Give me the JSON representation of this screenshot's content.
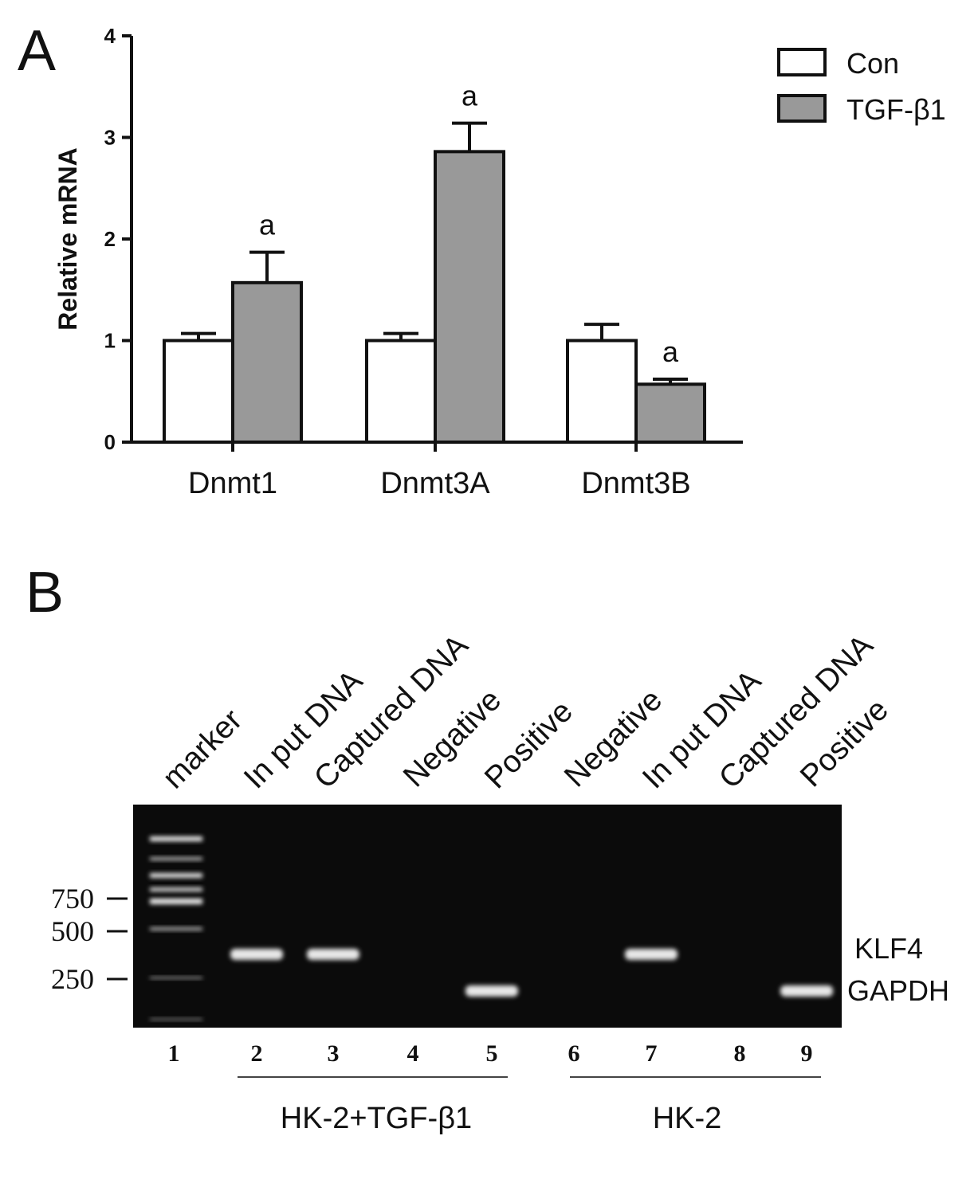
{
  "panel_a_letter": "A",
  "panel_b_letter": "B",
  "chart_data": [
    {
      "type": "bar",
      "ylabel": "Relative mRNA",
      "xlabel": "",
      "ylim": [
        0,
        4
      ],
      "yticks": [
        "0",
        "1",
        "2",
        "3",
        "4"
      ],
      "categories": [
        "Dnmt1",
        "Dnmt3A",
        "Dnmt3B"
      ],
      "legend_position": "top-right",
      "series": [
        {
          "name": "Con",
          "color": "#ffffff",
          "values": [
            1.0,
            1.0,
            1.0
          ],
          "errors": [
            0.07,
            0.07,
            0.16
          ]
        },
        {
          "name": "TGF-β1",
          "color": "#999999",
          "values": [
            1.57,
            2.86,
            0.57
          ],
          "errors": [
            0.3,
            0.28,
            0.05
          ]
        }
      ],
      "annotations": [
        "a",
        "a",
        "a"
      ]
    },
    {
      "type": "gel",
      "lanes": [
        {
          "number": "1",
          "name": "marker",
          "bands": []
        },
        {
          "number": "2",
          "name": "In put DNA",
          "bands": [
            "KLF4"
          ]
        },
        {
          "number": "3",
          "name": "Captured DNA",
          "bands": [
            "KLF4"
          ]
        },
        {
          "number": "4",
          "name": "Negative",
          "bands": []
        },
        {
          "number": "5",
          "name": "Positive",
          "bands": [
            "GAPDH"
          ]
        },
        {
          "number": "6",
          "name": "Negative",
          "bands": []
        },
        {
          "number": "7",
          "name": "In put DNA",
          "bands": [
            "KLF4"
          ]
        },
        {
          "number": "8",
          "name": "Captured DNA",
          "bands": []
        },
        {
          "number": "9",
          "name": "Positive",
          "bands": [
            "GAPDH"
          ]
        }
      ],
      "size_markers": [
        "750",
        "500",
        "250"
      ],
      "gene_labels": [
        "KLF4",
        "GAPDH"
      ],
      "groups": [
        {
          "label": "HK-2+TGF-β1",
          "lanes": [
            "2",
            "3",
            "4",
            "5"
          ]
        },
        {
          "label": "HK-2",
          "lanes": [
            "6",
            "7",
            "8",
            "9"
          ]
        }
      ]
    }
  ]
}
